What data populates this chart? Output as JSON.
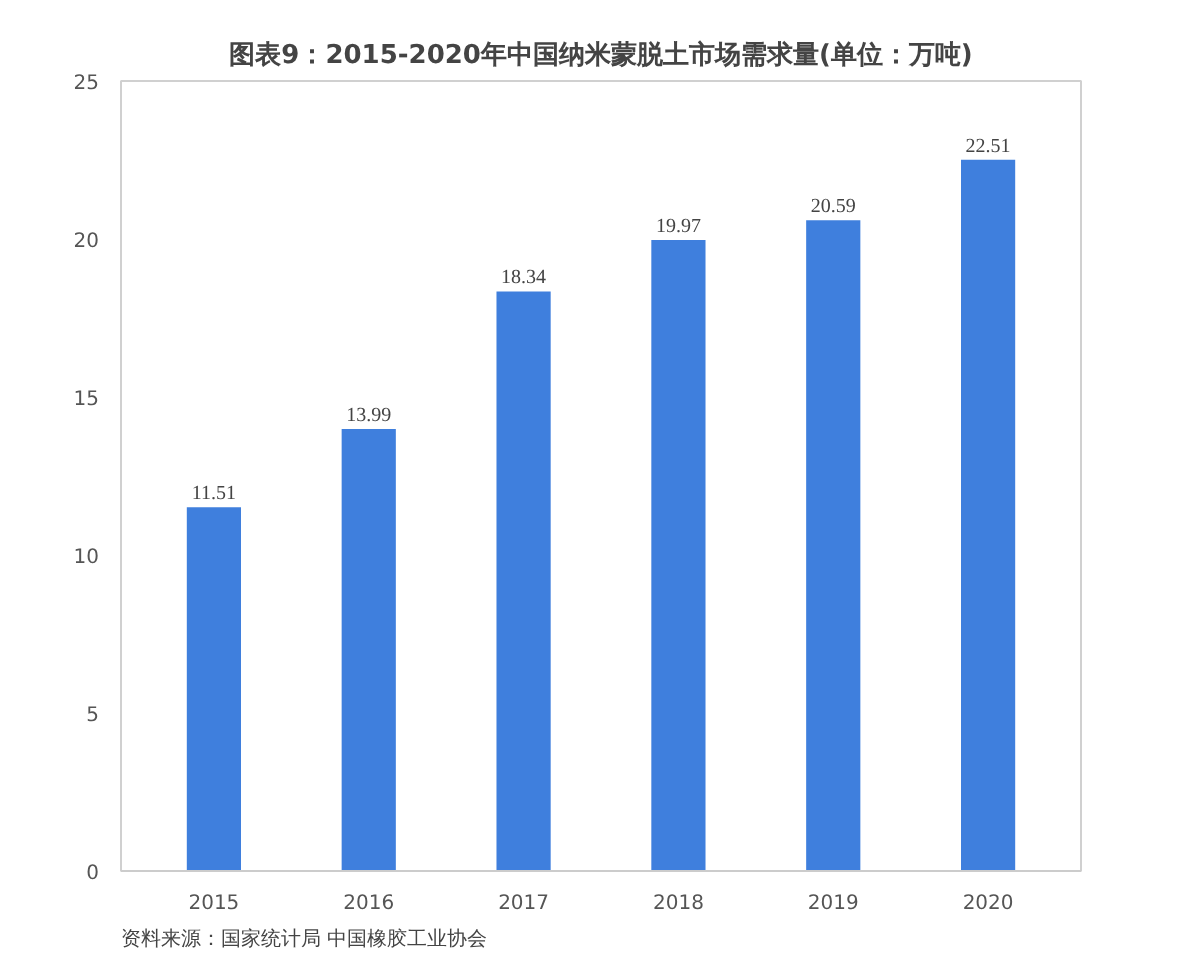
{
  "chart_data": {
    "type": "bar",
    "title": "图表9：2015-2020年中国纳米蒙脱土市场需求量(单位：万吨)",
    "categories": [
      "2015",
      "2016",
      "2017",
      "2018",
      "2019",
      "2020"
    ],
    "values": [
      11.51,
      13.99,
      18.34,
      19.97,
      20.59,
      22.51
    ],
    "color": "#3f7fdd",
    "ylim": [
      0,
      25
    ],
    "yticks": [
      0,
      5,
      10,
      15,
      20,
      25
    ],
    "grid": false,
    "data_labels": true,
    "annotations": [
      "资料来源：国家统计局 中国橡胶工业协会"
    ]
  }
}
